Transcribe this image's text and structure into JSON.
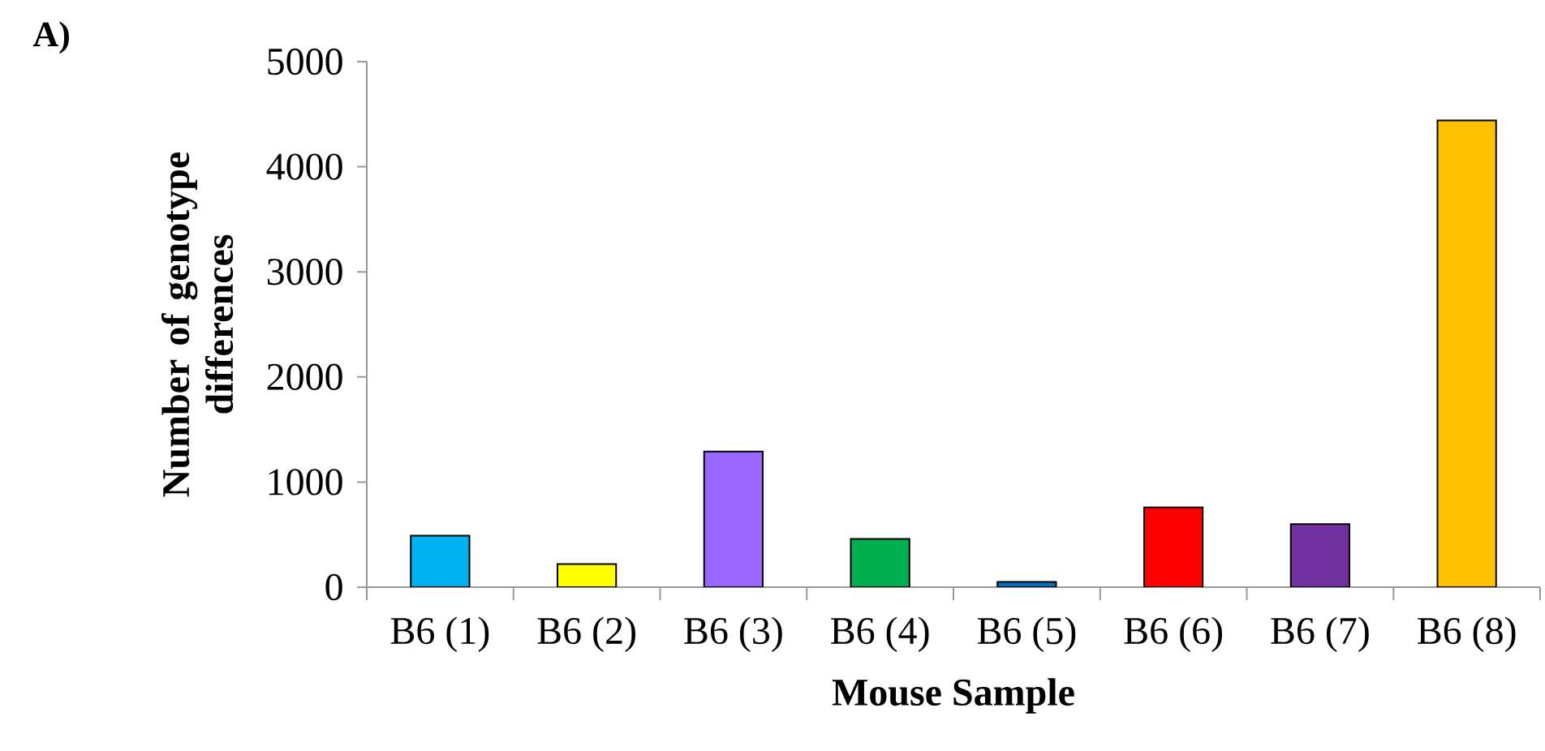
{
  "chart_data": {
    "type": "bar",
    "xlabel": "Mouse Sample",
    "ylabel": "Number of genotype differences",
    "annotations": [
      "A)"
    ],
    "categories": [
      "B6 (1)",
      "B6 (2)",
      "B6 (3)",
      "B6 (4)",
      "B6 (5)",
      "B6 (6)",
      "B6 (7)",
      "B6 (8)"
    ],
    "values": [
      490,
      220,
      1290,
      460,
      50,
      760,
      600,
      4440
    ],
    "colors": [
      "#00b0f0",
      "#ffff00",
      "#9966ff",
      "#00b050",
      "#0070c0",
      "#ff0000",
      "#7030a0",
      "#ffc000"
    ],
    "ylim": [
      0,
      5000
    ],
    "yticks": [
      0,
      1000,
      2000,
      3000,
      4000,
      5000
    ],
    "grid": false
  }
}
